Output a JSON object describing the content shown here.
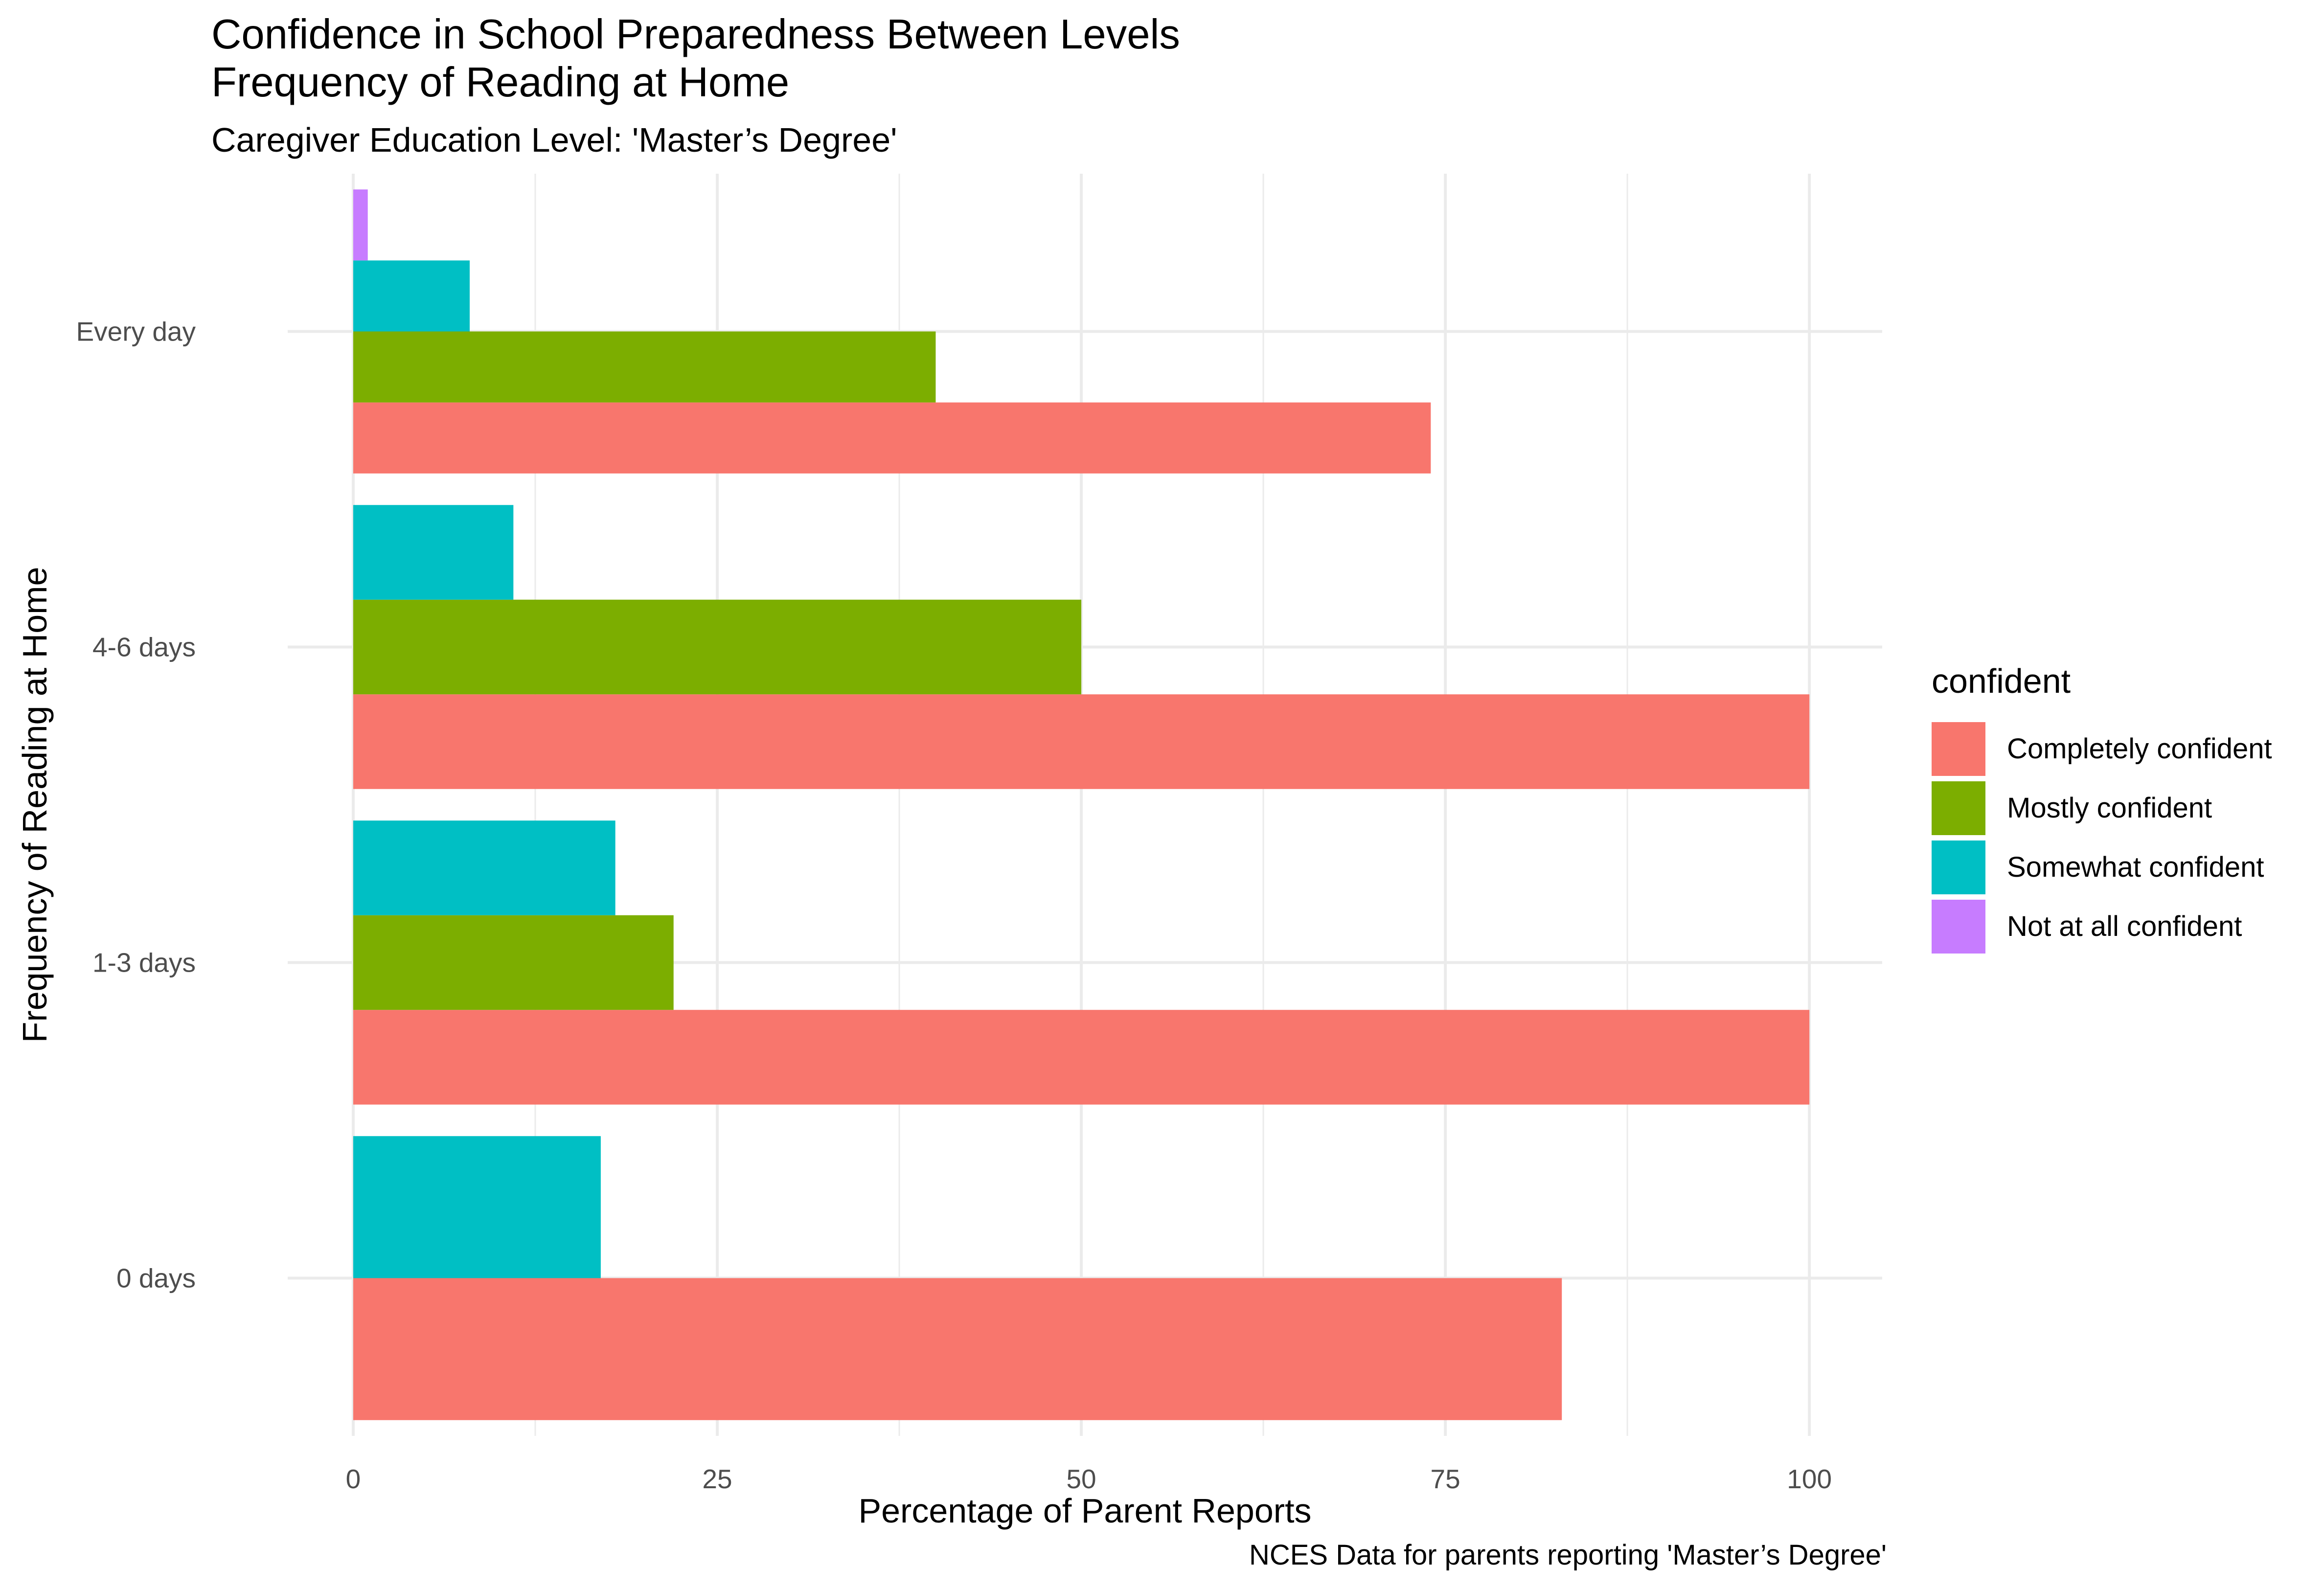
{
  "title": "Confidence in School Preparedness Between Levels Frequency of Reading at Home",
  "subtitle": "Caregiver Education Level: 'Master’s Degree'",
  "caption": "NCES Data for parents reporting 'Master’s Degree'",
  "legend": {
    "title": "confident",
    "items": [
      {
        "label": "Completely confident",
        "color": "#F8766D"
      },
      {
        "label": "Mostly confident",
        "color": "#7CAE00"
      },
      {
        "label": "Somewhat confident",
        "color": "#00BFC4"
      },
      {
        "label": "Not at all confident",
        "color": "#C77CFF"
      }
    ]
  },
  "chart_data": {
    "type": "bar",
    "orientation": "horizontal",
    "position": "dodge",
    "title": "Confidence in School Preparedness Between Levels Frequency of Reading at Home",
    "subtitle": "Caregiver Education Level: 'Master’s Degree'",
    "xlabel": "Percentage of Parent Reports",
    "ylabel": "Frequency of Reading at Home",
    "xlim": [
      0,
      105
    ],
    "xticks": [
      0,
      25,
      50,
      75,
      100
    ],
    "grid": true,
    "legend_position": "right",
    "categories": [
      "0 days",
      "1-3 days",
      "4-6 days",
      "Every day"
    ],
    "series": [
      {
        "name": "Completely confident",
        "color": "#F8766D",
        "values": [
          83,
          100,
          100,
          74
        ]
      },
      {
        "name": "Mostly confident",
        "color": "#7CAE00",
        "values": [
          null,
          22,
          50,
          40
        ]
      },
      {
        "name": "Somewhat confident",
        "color": "#00BFC4",
        "values": [
          17,
          18,
          11,
          8
        ]
      },
      {
        "name": "Not at all confident",
        "color": "#C77CFF",
        "values": [
          null,
          null,
          null,
          1
        ]
      }
    ]
  }
}
